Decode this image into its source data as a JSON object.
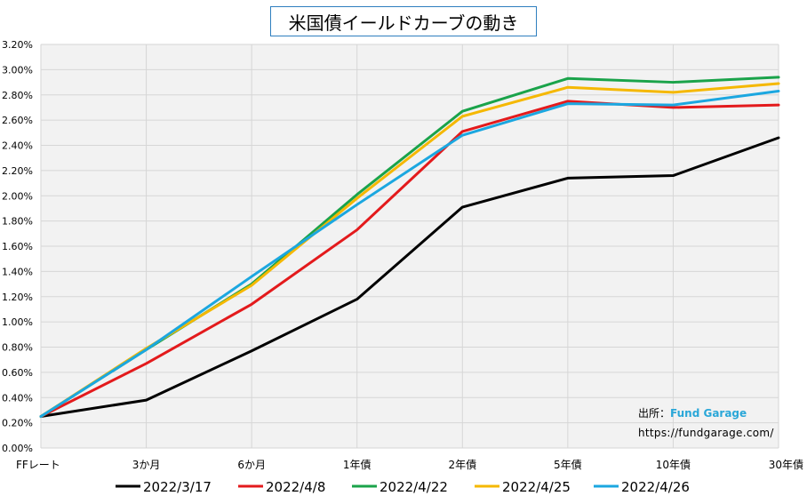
{
  "chart_data": {
    "type": "line",
    "title": "米国債イールドカーブの動き",
    "categories": [
      "FFレート",
      "3か月",
      "6か月",
      "1年債",
      "2年債",
      "5年債",
      "10年債",
      "30年債"
    ],
    "ylim": [
      0,
      3.2
    ],
    "ytick_step": 0.2,
    "ytick_labels": [
      "0.00%",
      "0.20%",
      "0.40%",
      "0.60%",
      "0.80%",
      "1.00%",
      "1.20%",
      "1.40%",
      "1.60%",
      "1.80%",
      "2.00%",
      "2.20%",
      "2.40%",
      "2.60%",
      "2.80%",
      "3.00%",
      "3.20%"
    ],
    "grid": true,
    "legend_position": "bottom",
    "series": [
      {
        "name": "2022/3/17",
        "color": "#000000",
        "values": [
          0.25,
          0.38,
          0.77,
          1.18,
          1.91,
          2.14,
          2.16,
          2.46
        ]
      },
      {
        "name": "2022/4/8",
        "color": "#e31a1c",
        "values": [
          0.25,
          0.67,
          1.14,
          1.73,
          2.51,
          2.75,
          2.7,
          2.72
        ]
      },
      {
        "name": "2022/4/22",
        "color": "#1aa34a",
        "values": [
          0.25,
          0.78,
          1.3,
          2.01,
          2.67,
          2.93,
          2.9,
          2.94
        ]
      },
      {
        "name": "2022/4/25",
        "color": "#f5b800",
        "values": [
          0.25,
          0.79,
          1.29,
          1.98,
          2.63,
          2.86,
          2.82,
          2.89
        ]
      },
      {
        "name": "2022/4/26",
        "color": "#1ba7e0",
        "values": [
          0.25,
          0.78,
          1.36,
          1.93,
          2.48,
          2.73,
          2.72,
          2.83
        ]
      }
    ]
  },
  "source": {
    "label": "出所：",
    "brand": "Fund Garage",
    "url": "https://fundgarage.com/"
  }
}
